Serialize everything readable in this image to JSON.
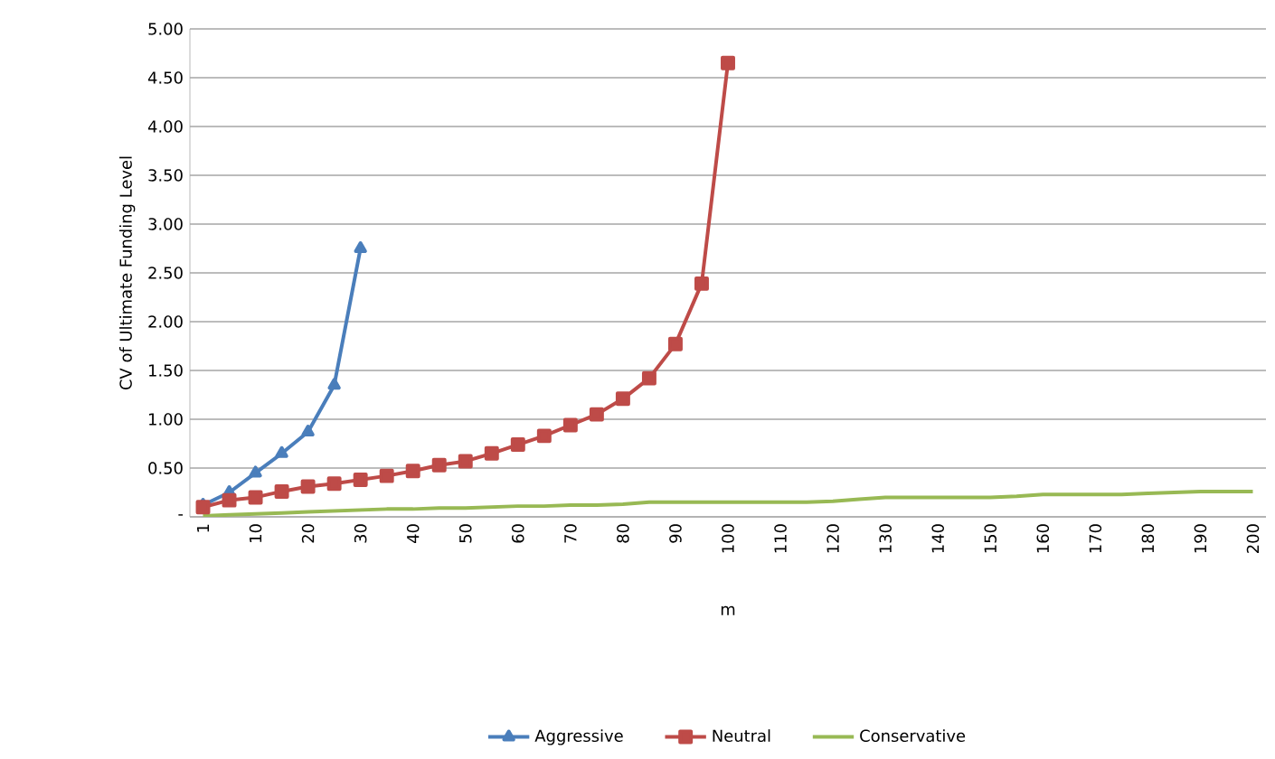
{
  "chart_data": {
    "type": "line",
    "xlabel": "m",
    "ylabel": "CV of Ultimate Funding Level",
    "categories": [
      "1",
      null,
      "10",
      null,
      "20",
      null,
      "30",
      null,
      "40",
      null,
      "50",
      null,
      "60",
      null,
      "70",
      null,
      "80",
      null,
      "90",
      null,
      "100",
      null,
      "110",
      null,
      "120",
      null,
      "130",
      null,
      "140",
      null,
      "150",
      null,
      "160",
      null,
      "170",
      null,
      "180",
      null,
      "190",
      null,
      "200"
    ],
    "series": [
      {
        "name": "Aggressive",
        "color": "#4a7ebb",
        "marker": "triangle",
        "values": [
          0.12,
          0.25,
          0.45,
          0.65,
          0.87,
          1.35,
          2.75,
          null,
          null,
          null,
          null,
          null,
          null,
          null,
          null,
          null,
          null,
          null,
          null,
          null,
          null,
          null,
          null,
          null,
          null,
          null,
          null,
          null,
          null,
          null,
          null,
          null,
          null,
          null,
          null,
          null,
          null,
          null,
          null,
          null,
          null
        ]
      },
      {
        "name": "Neutral",
        "color": "#be4b48",
        "marker": "square",
        "values": [
          0.1,
          0.17,
          0.2,
          0.26,
          0.31,
          0.34,
          0.38,
          0.42,
          0.47,
          0.53,
          0.57,
          0.65,
          0.74,
          0.83,
          0.94,
          1.05,
          1.21,
          1.42,
          1.77,
          2.39,
          4.65,
          null,
          null,
          null,
          null,
          null,
          null,
          null,
          null,
          null,
          null,
          null,
          null,
          null,
          null,
          null,
          null,
          null,
          null,
          null,
          null
        ]
      },
      {
        "name": "Conservative",
        "color": "#98b954",
        "marker": "none",
        "values": [
          0.01,
          0.02,
          0.03,
          0.04,
          0.05,
          0.06,
          0.07,
          0.08,
          0.08,
          0.09,
          0.09,
          0.1,
          0.11,
          0.11,
          0.12,
          0.12,
          0.13,
          0.15,
          0.15,
          0.15,
          0.15,
          0.15,
          0.15,
          0.15,
          0.16,
          0.18,
          0.2,
          0.2,
          0.2,
          0.2,
          0.2,
          0.21,
          0.23,
          0.23,
          0.23,
          0.23,
          0.24,
          0.25,
          0.26,
          0.26,
          0.26
        ]
      }
    ],
    "ylim": [
      0,
      5
    ],
    "yticks": [
      {
        "value": 0,
        "label": "-"
      },
      {
        "value": 0.5,
        "label": "0.50"
      },
      {
        "value": 1,
        "label": "1.00"
      },
      {
        "value": 1.5,
        "label": "1.50"
      },
      {
        "value": 2,
        "label": "2.00"
      },
      {
        "value": 2.5,
        "label": "2.50"
      },
      {
        "value": 3,
        "label": "3.00"
      },
      {
        "value": 3.5,
        "label": "3.50"
      },
      {
        "value": 4,
        "label": "4.00"
      },
      {
        "value": 4.5,
        "label": "4.50"
      },
      {
        "value": 5,
        "label": "5.00"
      }
    ],
    "grid": "y",
    "legend": "bottom"
  }
}
